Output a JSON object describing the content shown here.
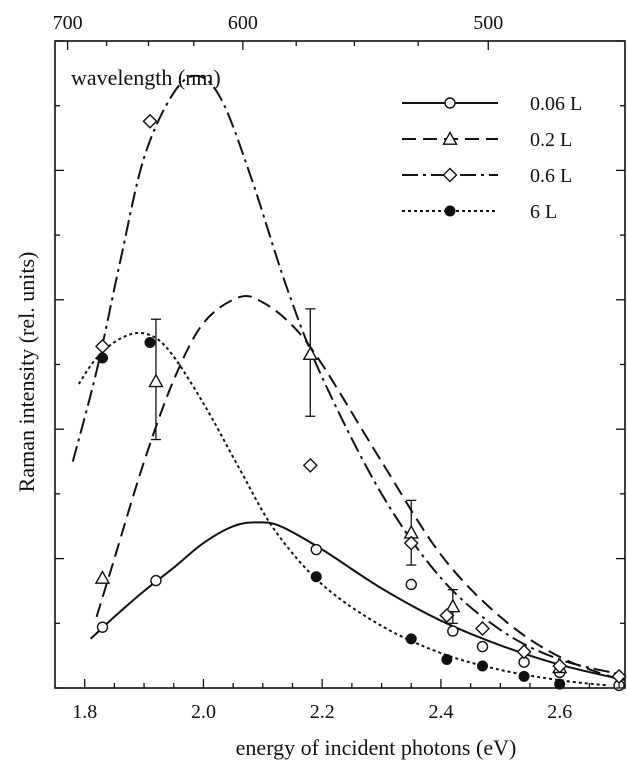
{
  "chart_data": {
    "type": "scatter",
    "title": "",
    "xlabel": "energy of incident photons (eV)",
    "ylabel": "Raman intensity (rel. units)",
    "top_axis_label": "wavelength (nm)",
    "xlim": [
      1.75,
      2.71
    ],
    "ylim": [
      0,
      5
    ],
    "x_ticks": [
      1.8,
      2.0,
      2.2,
      2.4,
      2.6
    ],
    "x_tick_labels": [
      "1.8",
      "2.0",
      "2.2",
      "2.4",
      "2.6"
    ],
    "top_ticks_nm": [
      700,
      600,
      500
    ],
    "top_tick_labels": [
      "700",
      "600",
      "500"
    ],
    "y_tick_labels": [],
    "legend_position": "top-right",
    "series": [
      {
        "name": "0.06 L",
        "line_style": "solid",
        "marker": "open-circle",
        "points": [
          [
            1.83,
            0.47
          ],
          [
            1.92,
            0.83
          ],
          [
            2.19,
            1.07
          ],
          [
            2.35,
            0.8
          ],
          [
            2.42,
            0.44
          ],
          [
            2.47,
            0.32
          ],
          [
            2.54,
            0.2
          ],
          [
            2.6,
            0.12
          ],
          [
            2.7,
            0.02
          ]
        ],
        "curve": [
          [
            1.81,
            0.38
          ],
          [
            1.85,
            0.55
          ],
          [
            1.9,
            0.75
          ],
          [
            1.95,
            0.93
          ],
          [
            2.0,
            1.12
          ],
          [
            2.05,
            1.25
          ],
          [
            2.09,
            1.28
          ],
          [
            2.13,
            1.25
          ],
          [
            2.2,
            1.07
          ],
          [
            2.3,
            0.77
          ],
          [
            2.4,
            0.52
          ],
          [
            2.5,
            0.33
          ],
          [
            2.6,
            0.18
          ],
          [
            2.71,
            0.06
          ]
        ]
      },
      {
        "name": "0.2 L",
        "line_style": "dashed",
        "marker": "open-triangle",
        "points": [
          [
            1.83,
            0.85
          ],
          [
            1.92,
            2.37
          ],
          [
            2.18,
            2.58
          ],
          [
            2.35,
            1.2
          ],
          [
            2.42,
            0.63
          ],
          [
            2.6,
            0.16
          ]
        ],
        "error_bars": [
          [
            1.92,
            1.92,
            2.85
          ],
          [
            2.18,
            2.1,
            2.93
          ],
          [
            2.35,
            0.95,
            1.45
          ],
          [
            2.42,
            0.5,
            0.76
          ]
        ],
        "curve": [
          [
            1.82,
            0.55
          ],
          [
            1.85,
            1.0
          ],
          [
            1.9,
            1.75
          ],
          [
            1.95,
            2.38
          ],
          [
            2.0,
            2.82
          ],
          [
            2.06,
            3.02
          ],
          [
            2.1,
            2.98
          ],
          [
            2.15,
            2.8
          ],
          [
            2.2,
            2.5
          ],
          [
            2.3,
            1.75
          ],
          [
            2.4,
            1.03
          ],
          [
            2.5,
            0.55
          ],
          [
            2.6,
            0.24
          ],
          [
            2.71,
            0.05
          ]
        ]
      },
      {
        "name": "0.6 L",
        "line_style": "dashdot",
        "marker": "open-diamond",
        "points": [
          [
            1.83,
            2.64
          ],
          [
            1.91,
            4.38
          ],
          [
            2.18,
            1.72
          ],
          [
            2.35,
            1.12
          ],
          [
            2.41,
            0.56
          ],
          [
            2.47,
            0.46
          ],
          [
            2.54,
            0.28
          ],
          [
            2.6,
            0.17
          ],
          [
            2.7,
            0.09
          ]
        ],
        "curve": [
          [
            1.78,
            1.75
          ],
          [
            1.82,
            2.45
          ],
          [
            1.86,
            3.3
          ],
          [
            1.9,
            4.1
          ],
          [
            1.95,
            4.6
          ],
          [
            1.99,
            4.73
          ],
          [
            2.03,
            4.55
          ],
          [
            2.08,
            3.95
          ],
          [
            2.14,
            3.1
          ],
          [
            2.2,
            2.4
          ],
          [
            2.3,
            1.5
          ],
          [
            2.4,
            0.85
          ],
          [
            2.5,
            0.45
          ],
          [
            2.6,
            0.22
          ],
          [
            2.71,
            0.1
          ]
        ]
      },
      {
        "name": "6 L",
        "line_style": "dotted",
        "marker": "filled-circle",
        "points": [
          [
            1.83,
            2.55
          ],
          [
            1.91,
            2.67
          ],
          [
            2.19,
            0.86
          ],
          [
            2.35,
            0.38
          ],
          [
            2.41,
            0.22
          ],
          [
            2.47,
            0.17
          ],
          [
            2.54,
            0.09
          ],
          [
            2.6,
            0.03
          ]
        ],
        "curve": [
          [
            1.79,
            2.35
          ],
          [
            1.82,
            2.55
          ],
          [
            1.86,
            2.7
          ],
          [
            1.9,
            2.74
          ],
          [
            1.94,
            2.62
          ],
          [
            2.0,
            2.2
          ],
          [
            2.06,
            1.7
          ],
          [
            2.12,
            1.22
          ],
          [
            2.2,
            0.8
          ],
          [
            2.3,
            0.48
          ],
          [
            2.4,
            0.27
          ],
          [
            2.5,
            0.14
          ],
          [
            2.6,
            0.06
          ],
          [
            2.68,
            0.02
          ]
        ]
      }
    ],
    "colors": {
      "line": "#111111",
      "background": "#ffffff"
    }
  }
}
